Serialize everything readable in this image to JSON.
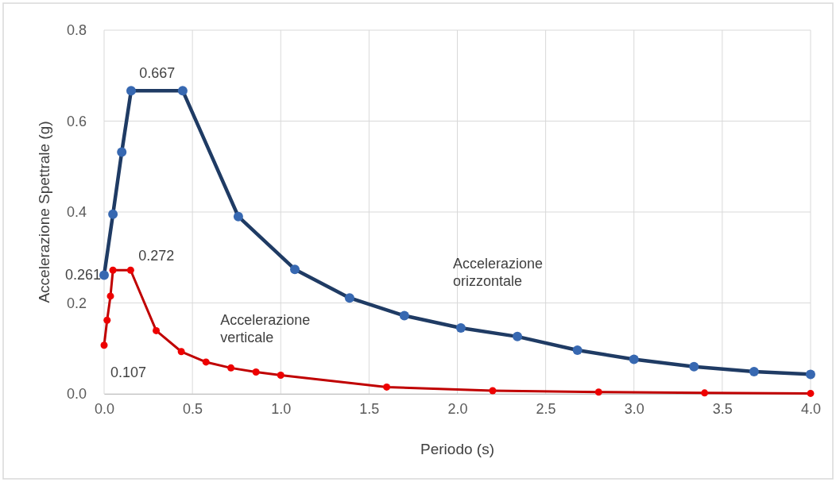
{
  "chart_data": {
    "type": "line",
    "xlabel": "Periodo (s)",
    "ylabel": "Accelerazione  Spettrale (g)",
    "xlim": [
      0,
      4
    ],
    "xticks": [
      {
        "value": 0,
        "label": "0.0"
      },
      0.5,
      {
        "value": 1,
        "label": "1.0"
      },
      1.5,
      {
        "value": 2,
        "label": "2.0"
      },
      2.5,
      {
        "value": 3,
        "label": "3.0"
      },
      3.5,
      {
        "value": 4,
        "label": "4.0"
      }
    ],
    "ylim": [
      0,
      0.8
    ],
    "yticks": [
      {
        "value": 0,
        "label": "0.0"
      },
      0.2,
      0.4,
      0.6,
      0.8
    ],
    "grid": true,
    "marker": "circle",
    "line_style": "solid",
    "series": [
      {
        "name": "Accelerazione orizzontale",
        "color": "#1f3b64",
        "x": [
          0,
          0.05,
          0.1,
          0.153,
          0.445,
          0.76,
          1.08,
          1.39,
          1.7,
          2.02,
          2.34,
          2.68,
          3.0,
          3.34,
          3.68,
          4.0
        ],
        "values": [
          0.261,
          0.395,
          0.532,
          0.667,
          0.667,
          0.39,
          0.274,
          0.211,
          0.172,
          0.145,
          0.126,
          0.096,
          0.076,
          0.06,
          0.049,
          0.043
        ]
      },
      {
        "name": "Accelerazione verticale",
        "color": "#c00000",
        "x": [
          0,
          0.017,
          0.036,
          0.05,
          0.15,
          0.295,
          0.437,
          0.577,
          0.718,
          0.86,
          1.0,
          1.6,
          2.2,
          2.8,
          3.4,
          4.0
        ],
        "values": [
          0.107,
          0.162,
          0.215,
          0.272,
          0.272,
          0.139,
          0.093,
          0.07,
          0.057,
          0.048,
          0.041,
          0.015,
          0.007,
          0.004,
          0.002,
          0.001
        ]
      }
    ],
    "annotations": [
      {
        "text": "0.667",
        "x": 0.3,
        "y": 0.667
      },
      {
        "text": "0.261",
        "x": 0,
        "y": 0.261
      },
      {
        "text": "0.272",
        "x": 0.15,
        "y": 0.272
      },
      {
        "text": "0.107",
        "x": 0,
        "y": 0.107
      }
    ]
  }
}
